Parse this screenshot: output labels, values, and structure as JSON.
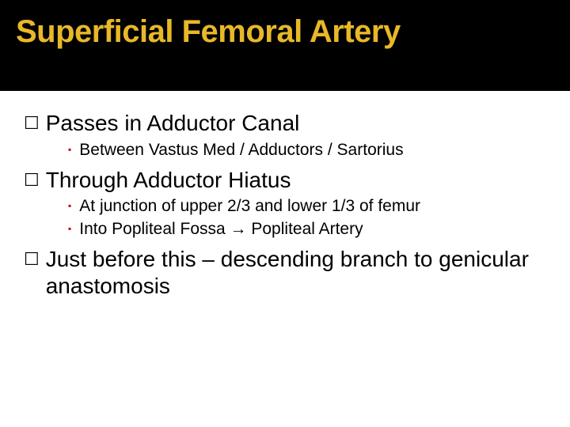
{
  "title": "Superficial Femoral Artery",
  "colors": {
    "title_bg": "#000000",
    "title_text": "#e8b828",
    "body_bg": "#ffffff",
    "body_text": "#000000",
    "sub_marker": "#c00000"
  },
  "typography": {
    "title_fontsize": 40,
    "title_weight": "bold",
    "l1_fontsize": 28,
    "l2_fontsize": 21,
    "font_family": "Arial"
  },
  "bullets": [
    {
      "text": "Passes in Adductor Canal",
      "children": [
        {
          "text": "Between Vastus Med / Adductors / Sartorius"
        }
      ]
    },
    {
      "text": "Through Adductor Hiatus",
      "children": [
        {
          "text": "At junction of upper 2/3 and lower 1/3 of femur"
        },
        {
          "text": "Into Popliteal Fossa → Popliteal Artery"
        }
      ]
    },
    {
      "text": "Just before this – descending branch to genicular anastomosis",
      "children": []
    }
  ],
  "markers": {
    "l1": "☐",
    "l2": "▪"
  }
}
